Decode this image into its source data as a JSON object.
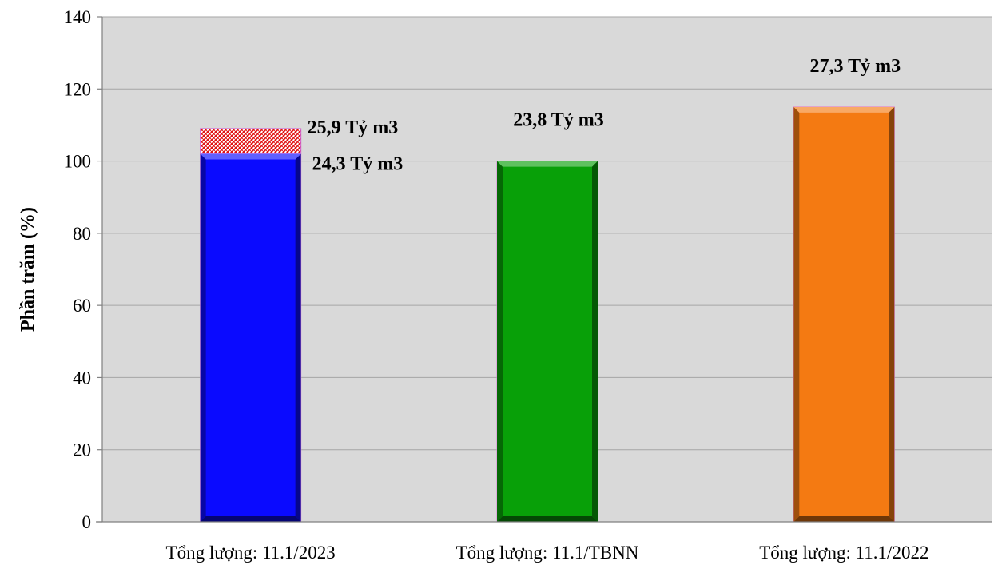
{
  "chart_data": {
    "type": "bar",
    "ylabel": "Phần trăm (%)",
    "ylim": [
      0,
      140
    ],
    "yticks": [
      0,
      20,
      40,
      60,
      80,
      100,
      120,
      140
    ],
    "grid": true,
    "background": "#d9d9d9",
    "categories": [
      "Tổng lượng: 11.1/2023",
      "Tổng lượng: 11.1/TBNN",
      "Tổng lượng: 11.1/2022"
    ],
    "bars": [
      {
        "category": "Tổng lượng: 11.1/2023",
        "value": 102,
        "color": "#0a0aff",
        "stack_top": {
          "value": 7,
          "total": 109,
          "pattern": "red-hatched"
        },
        "labels": [
          "25,9 Tỷ m3",
          "24,3 Tỷ m3"
        ]
      },
      {
        "category": "Tổng lượng: 11.1/TBNN",
        "value": 100,
        "color": "#08a008",
        "labels": [
          "23,8 Tỷ m3"
        ]
      },
      {
        "category": "Tổng lượng: 11.1/2022",
        "value": 115,
        "color": "#f47a12",
        "labels": [
          "27,3 Tỷ m3"
        ]
      }
    ]
  }
}
